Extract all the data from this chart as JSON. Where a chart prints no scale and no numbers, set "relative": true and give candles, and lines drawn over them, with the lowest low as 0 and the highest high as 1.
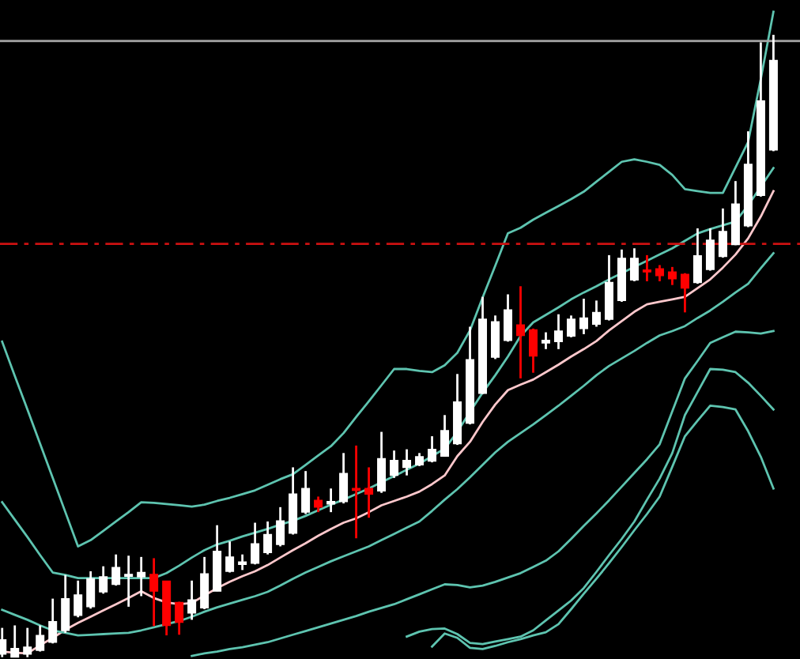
{
  "chart_data": {
    "type": "candlestick",
    "relative": true,
    "grid": false,
    "categories": [
      null,
      null,
      null,
      null,
      null,
      null,
      null,
      null,
      null,
      null,
      null,
      null,
      null,
      null,
      null,
      null,
      null,
      null,
      null,
      null,
      null,
      null,
      null,
      null,
      null,
      null,
      null,
      null,
      null,
      null,
      null,
      null,
      null,
      null,
      null,
      null,
      null,
      null,
      null,
      null,
      null,
      null,
      null,
      null,
      null,
      null,
      null,
      null,
      null,
      null,
      null,
      null,
      null,
      null,
      null,
      null,
      null,
      null,
      null,
      null,
      null,
      null
    ],
    "ohlc": [
      [
        0.005,
        0.047,
        0,
        0.028
      ],
      [
        0,
        0.051,
        0,
        0.014
      ],
      [
        0.005,
        0.047,
        0,
        0.016
      ],
      [
        0.011,
        0.051,
        0.009,
        0.035
      ],
      [
        0.024,
        0.094,
        0.022,
        0.057
      ],
      [
        0.043,
        0.132,
        0.039,
        0.094
      ],
      [
        0.067,
        0.123,
        0.064,
        0.1
      ],
      [
        0.081,
        0.138,
        0.078,
        0.126
      ],
      [
        0.105,
        0.146,
        0.102,
        0.129
      ],
      [
        0.117,
        0.165,
        0.115,
        0.144
      ],
      [
        0.13,
        0.163,
        0.081,
        0.133
      ],
      [
        0.129,
        0.161,
        0.098,
        0.136
      ],
      [
        0.133,
        0.159,
        0.05,
        0.106
      ],
      [
        0.122,
        0.122,
        0.035,
        0.051
      ],
      [
        0.088,
        0.089,
        0.036,
        0.056
      ],
      [
        0.071,
        0.123,
        0.06,
        0.092
      ],
      [
        0.079,
        0.161,
        0.077,
        0.134
      ],
      [
        0.106,
        0.212,
        0.106,
        0.17
      ],
      [
        0.138,
        0.186,
        0.136,
        0.161
      ],
      [
        0.149,
        0.165,
        0.14,
        0.153
      ],
      [
        0.151,
        0.216,
        0.149,
        0.182
      ],
      [
        0.168,
        0.218,
        0.165,
        0.197
      ],
      [
        0.181,
        0.241,
        0.178,
        0.219
      ],
      [
        0.199,
        0.305,
        0.197,
        0.262
      ],
      [
        0.233,
        0.299,
        0.23,
        0.271
      ],
      [
        0.252,
        0.258,
        0.233,
        0.241
      ],
      [
        0.246,
        0.271,
        0.233,
        0.25
      ],
      [
        0.25,
        0.328,
        0.247,
        0.295
      ],
      [
        0.271,
        0.34,
        0.191,
        0.268
      ],
      [
        0.271,
        0.305,
        0.224,
        0.262
      ],
      [
        0.267,
        0.362,
        0.264,
        0.319
      ],
      [
        0.292,
        0.332,
        0.288,
        0.316
      ],
      [
        0.305,
        0.334,
        0.292,
        0.316
      ],
      [
        0.309,
        0.328,
        0.307,
        0.322
      ],
      [
        0.315,
        0.355,
        0.313,
        0.334
      ],
      [
        0.323,
        0.389,
        0.322,
        0.364
      ],
      [
        0.343,
        0.455,
        0.341,
        0.41
      ],
      [
        0.376,
        0.531,
        0.374,
        0.478
      ],
      [
        0.424,
        0.579,
        0.423,
        0.543
      ],
      [
        0.482,
        0.549,
        0.479,
        0.539
      ],
      [
        0.509,
        0.583,
        0.507,
        0.558
      ],
      [
        0.534,
        0.596,
        0.448,
        0.517
      ],
      [
        0.526,
        0.528,
        0.457,
        0.484
      ],
      [
        0.505,
        0.522,
        0.495,
        0.509
      ],
      [
        0.507,
        0.551,
        0.495,
        0.524
      ],
      [
        0.516,
        0.549,
        0.514,
        0.543
      ],
      [
        0.528,
        0.576,
        0.519,
        0.545
      ],
      [
        0.535,
        0.573,
        0.531,
        0.554
      ],
      [
        0.543,
        0.646,
        0.541,
        0.602
      ],
      [
        0.573,
        0.655,
        0.571,
        0.641
      ],
      [
        0.606,
        0.657,
        0.604,
        0.641
      ],
      [
        0.622,
        0.646,
        0.604,
        0.619
      ],
      [
        0.624,
        0.63,
        0.604,
        0.613
      ],
      [
        0.619,
        0.627,
        0.598,
        0.608
      ],
      [
        0.615,
        0.617,
        0.554,
        0.593
      ],
      [
        0.602,
        0.689,
        0.6,
        0.645
      ],
      [
        0.623,
        0.689,
        0.621,
        0.67
      ],
      [
        0.644,
        0.721,
        0.642,
        0.684
      ],
      [
        0.663,
        0.765,
        0.662,
        0.728
      ],
      [
        0.693,
        0.845,
        0.691,
        0.792
      ],
      [
        0.742,
        0.988,
        0.74,
        0.894
      ],
      [
        0.815,
        1.0,
        0.813,
        0.959
      ]
    ],
    "colors": [
      "#ffffff",
      "#ffffff",
      "#ffffff",
      "#ffffff",
      "#ffffff",
      "#ffffff",
      "#ffffff",
      "#ffffff",
      "#ffffff",
      "#ffffff",
      "#ffffff",
      "#ffffff",
      "#ff0000",
      "#ff0000",
      "#ff0000",
      "#ffffff",
      "#ffffff",
      "#ffffff",
      "#ffffff",
      "#ffffff",
      "#ffffff",
      "#ffffff",
      "#ffffff",
      "#ffffff",
      "#ffffff",
      "#ff0000",
      "#ffffff",
      "#ffffff",
      "#ff0000",
      "#ff0000",
      "#ffffff",
      "#ffffff",
      "#ffffff",
      "#ffffff",
      "#ffffff",
      "#ffffff",
      "#ffffff",
      "#ffffff",
      "#ffffff",
      "#ffffff",
      "#ffffff",
      "#ff0000",
      "#ff0000",
      "#ffffff",
      "#ffffff",
      "#ffffff",
      "#ffffff",
      "#ffffff",
      "#ffffff",
      "#ffffff",
      "#ffffff",
      "#ff0000",
      "#ff0000",
      "#ff0000",
      "#ff0000",
      "#ffffff",
      "#ffffff",
      "#ffffff",
      "#ffffff",
      "#ffffff",
      "#ffffff",
      "#ffffff"
    ],
    "series": [
      {
        "type": "line",
        "color": "#5ec4b0",
        "values": [
          0.507,
          0.452,
          0.398,
          0.343,
          0.288,
          0.233,
          0.178,
          0.188,
          0.203,
          0.218,
          0.233,
          0.249,
          0.248,
          0.246,
          0.244,
          0.242,
          0.245,
          0.251,
          0.256,
          0.262,
          0.268,
          0.277,
          0.286,
          0.294,
          0.309,
          0.324,
          0.339,
          0.36,
          0.386,
          0.411,
          0.437,
          0.463,
          0.463,
          0.46,
          0.458,
          0.469,
          0.489,
          0.525,
          0.578,
          0.629,
          0.681,
          0.69,
          0.703,
          0.714,
          0.725,
          0.736,
          0.748,
          0.764,
          0.78,
          0.796,
          0.8,
          0.796,
          0.791,
          0.775,
          0.752,
          0.749,
          0.746,
          0.746,
          0.787,
          0.828,
          0.929,
          1.037
        ]
      },
      {
        "type": "line",
        "color": "#5ec4b0",
        "values": [
          0.249,
          0.221,
          0.193,
          0.164,
          0.136,
          0.132,
          0.127,
          0.127,
          0.127,
          0.127,
          0.127,
          0.127,
          0.127,
          0.135,
          0.147,
          0.16,
          0.172,
          0.181,
          0.187,
          0.194,
          0.2,
          0.206,
          0.213,
          0.219,
          0.227,
          0.236,
          0.245,
          0.253,
          0.262,
          0.271,
          0.281,
          0.291,
          0.301,
          0.311,
          0.323,
          0.335,
          0.362,
          0.394,
          0.425,
          0.453,
          0.483,
          0.516,
          0.538,
          0.55,
          0.562,
          0.575,
          0.586,
          0.596,
          0.607,
          0.617,
          0.627,
          0.637,
          0.647,
          0.657,
          0.669,
          0.681,
          0.688,
          0.694,
          0.7,
          0.726,
          0.756,
          0.786
        ]
      },
      {
        "type": "line",
        "color": "#ffc8cc",
        "values": [
          0.009,
          0.007,
          0.006,
          0.019,
          0.031,
          0.044,
          0.055,
          0.065,
          0.075,
          0.085,
          0.095,
          0.106,
          0.095,
          0.088,
          0.085,
          0.087,
          0.099,
          0.111,
          0.121,
          0.13,
          0.138,
          0.148,
          0.16,
          0.172,
          0.183,
          0.195,
          0.206,
          0.216,
          0.223,
          0.233,
          0.244,
          0.251,
          0.258,
          0.266,
          0.278,
          0.292,
          0.323,
          0.346,
          0.378,
          0.406,
          0.429,
          0.438,
          0.446,
          0.458,
          0.47,
          0.483,
          0.495,
          0.508,
          0.525,
          0.54,
          0.555,
          0.567,
          0.571,
          0.575,
          0.579,
          0.593,
          0.607,
          0.626,
          0.647,
          0.673,
          0.708,
          0.749
        ]
      },
      {
        "type": "line",
        "color": "#5ec4b0",
        "values": [
          0.076,
          0.068,
          0.06,
          0.051,
          0.043,
          0.039,
          0.035,
          0.036,
          0.037,
          0.038,
          0.039,
          0.043,
          0.048,
          0.053,
          0.058,
          0.065,
          0.073,
          0.08,
          0.086,
          0.092,
          0.098,
          0.105,
          0.115,
          0.126,
          0.136,
          0.145,
          0.154,
          0.162,
          0.17,
          0.178,
          0.188,
          0.198,
          0.208,
          0.218,
          0.235,
          0.253,
          0.27,
          0.289,
          0.309,
          0.329,
          0.346,
          0.36,
          0.374,
          0.389,
          0.404,
          0.42,
          0.436,
          0.453,
          0.468,
          0.48,
          0.492,
          0.505,
          0.517,
          0.524,
          0.532,
          0.545,
          0.557,
          0.571,
          0.586,
          0.6,
          0.625,
          0.649
        ]
      },
      {
        "type": "line",
        "color": "#5ec4b0",
        "values": [
          null,
          null,
          null,
          null,
          null,
          null,
          null,
          null,
          null,
          null,
          null,
          null,
          null,
          null,
          null,
          0.002,
          0.006,
          0.009,
          0.013,
          0.016,
          0.02,
          0.024,
          0.03,
          0.036,
          0.042,
          0.048,
          0.054,
          0.06,
          0.066,
          0.073,
          0.079,
          0.085,
          0.093,
          0.101,
          0.109,
          0.117,
          0.116,
          0.112,
          0.115,
          0.121,
          0.128,
          0.135,
          0.145,
          0.155,
          0.17,
          0.19,
          0.211,
          0.231,
          0.252,
          0.274,
          0.296,
          0.318,
          0.342,
          0.395,
          0.448,
          0.476,
          0.505,
          0.514,
          0.523,
          0.522,
          0.52,
          0.524
        ]
      },
      {
        "type": "line",
        "color": "#5ec4b0",
        "values": [
          null,
          null,
          null,
          null,
          null,
          null,
          null,
          null,
          null,
          null,
          null,
          null,
          null,
          null,
          null,
          null,
          null,
          null,
          null,
          null,
          null,
          null,
          null,
          null,
          null,
          null,
          null,
          null,
          null,
          null,
          null,
          null,
          0.033,
          0.041,
          0.045,
          0.046,
          0.037,
          0.023,
          0.021,
          0.025,
          0.029,
          0.033,
          0.043,
          0.059,
          0.075,
          0.091,
          0.111,
          0.137,
          0.164,
          0.19,
          0.218,
          0.253,
          0.287,
          0.328,
          0.389,
          0.426,
          0.463,
          0.462,
          0.458,
          0.441,
          0.42,
          0.398
        ]
      },
      {
        "type": "line",
        "color": "#5ec4b0",
        "values": [
          null,
          null,
          null,
          null,
          null,
          null,
          null,
          null,
          null,
          null,
          null,
          null,
          null,
          null,
          null,
          null,
          null,
          null,
          null,
          null,
          null,
          null,
          null,
          null,
          null,
          null,
          null,
          null,
          null,
          null,
          null,
          null,
          null,
          null,
          0.017,
          0.038,
          0.031,
          0.015,
          0.013,
          0.018,
          0.024,
          0.029,
          0.035,
          0.04,
          0.053,
          0.077,
          0.102,
          0.126,
          0.151,
          0.177,
          0.204,
          0.23,
          0.258,
          0.306,
          0.355,
          0.38,
          0.404,
          0.402,
          0.398,
          0.363,
          0.322,
          0.271
        ]
      }
    ],
    "ref_lines": [
      {
        "axis": "y",
        "value": 0.664,
        "color": "#cc1111",
        "line_style": "dashed"
      },
      {
        "axis": "y",
        "value": 0.99,
        "color": "#a8a8a8",
        "line_style": "solid"
      }
    ]
  }
}
